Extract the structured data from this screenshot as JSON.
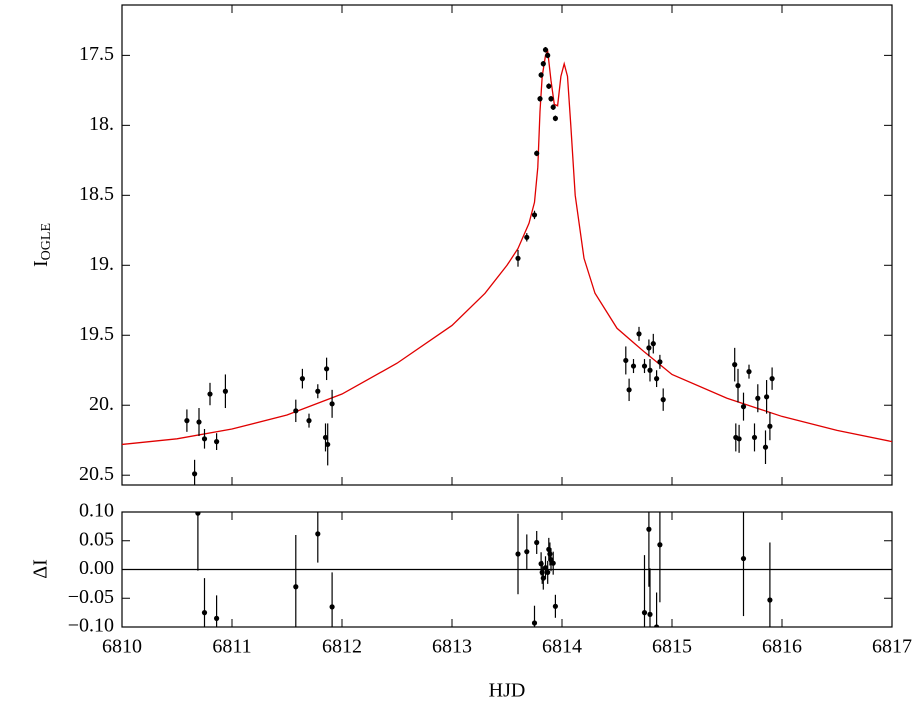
{
  "chart_data": [
    {
      "type": "errorbar",
      "ylabel": {
        "text": "I",
        "sub": "OGLE"
      },
      "xlim": [
        6810,
        6817
      ],
      "xticks": [
        6810,
        6811,
        6812,
        6813,
        6814,
        6815,
        6816,
        6817
      ],
      "xtick_labels": false,
      "ylim": [
        20.57,
        17.14
      ],
      "yticks": [
        17.5,
        {
          "value": 18,
          "label": "18."
        },
        18.5,
        {
          "value": 19,
          "label": "19."
        },
        19.5,
        {
          "value": 20,
          "label": "20."
        },
        20.5
      ],
      "points": {
        "color": "#000000",
        "x": [
          6810.59,
          6810.66,
          6810.7,
          6810.75,
          6810.8,
          6810.86,
          6810.94,
          6811.58,
          6811.64,
          6811.7,
          6811.78,
          6811.85,
          6811.86,
          6811.87,
          6811.91,
          6813.6,
          6813.68,
          6813.75,
          6813.77,
          6813.8,
          6813.81,
          6813.83,
          6813.85,
          6813.87,
          6813.88,
          6813.9,
          6813.92,
          6813.94,
          6814.58,
          6814.61,
          6814.65,
          6814.7,
          6814.75,
          6814.79,
          6814.8,
          6814.83,
          6814.86,
          6814.89,
          6814.92,
          6815.57,
          6815.58,
          6815.6,
          6815.61,
          6815.65,
          6815.7,
          6815.75,
          6815.78,
          6815.85,
          6815.86,
          6815.89,
          6815.91
        ],
        "values": [
          20.11,
          20.49,
          20.12,
          20.24,
          19.92,
          20.26,
          19.9,
          20.04,
          19.81,
          20.11,
          19.9,
          20.23,
          19.74,
          20.28,
          19.99,
          18.95,
          18.8,
          18.64,
          18.2,
          17.81,
          17.64,
          17.56,
          17.46,
          17.5,
          17.72,
          17.81,
          17.87,
          17.95,
          19.68,
          19.89,
          19.72,
          19.49,
          19.72,
          19.59,
          19.75,
          19.56,
          19.81,
          19.69,
          19.96,
          19.71,
          20.23,
          19.86,
          20.24,
          20.01,
          19.76,
          20.23,
          19.95,
          20.3,
          19.94,
          20.15,
          19.81
        ],
        "errors": [
          0.08,
          0.1,
          0.1,
          0.07,
          0.08,
          0.06,
          0.12,
          0.08,
          0.07,
          0.05,
          0.05,
          0.1,
          0.08,
          0.15,
          0.1,
          0.06,
          0.03,
          0.03,
          0.02,
          0.02,
          0.02,
          0.02,
          0.02,
          0.02,
          0.02,
          0.02,
          0.02,
          0.02,
          0.1,
          0.08,
          0.05,
          0.05,
          0.05,
          0.06,
          0.08,
          0.07,
          0.06,
          0.05,
          0.08,
          0.12,
          0.1,
          0.12,
          0.1,
          0.1,
          0.05,
          0.1,
          0.1,
          0.12,
          0.12,
          0.1,
          0.08
        ]
      },
      "model": {
        "color": "#e00000",
        "x": [
          6810,
          6810.5,
          6811,
          6811.5,
          6812,
          6812.5,
          6813,
          6813.3,
          6813.5,
          6813.6,
          6813.7,
          6813.75,
          6813.78,
          6813.8,
          6813.82,
          6813.85,
          6813.87,
          6813.9,
          6813.93,
          6813.96,
          6813.99,
          6814.02,
          6814.05,
          6814.08,
          6814.12,
          6814.2,
          6814.3,
          6814.5,
          6814.75,
          6815,
          6815.5,
          6816,
          6816.5,
          6817
        ],
        "values": [
          20.28,
          20.24,
          20.17,
          20.07,
          19.92,
          19.7,
          19.43,
          19.2,
          19.0,
          18.88,
          18.7,
          18.55,
          18.3,
          17.9,
          17.65,
          17.5,
          17.47,
          17.68,
          17.85,
          17.86,
          17.65,
          17.56,
          17.65,
          18.0,
          18.5,
          18.95,
          19.2,
          19.45,
          19.62,
          19.78,
          19.95,
          20.08,
          20.18,
          20.26
        ]
      }
    },
    {
      "type": "errorbar",
      "ylabel": {
        "text": "ΔI"
      },
      "xlabel": "HJD",
      "xlim": [
        6810,
        6817
      ],
      "xticks": [
        6810,
        6811,
        6812,
        6813,
        6814,
        6815,
        6816,
        6817
      ],
      "xtick_labels": true,
      "ylim": [
        -0.1,
        0.1
      ],
      "yticks": [
        {
          "value": -0.1,
          "label": "−0.10"
        },
        {
          "value": -0.05,
          "label": "−0.05"
        },
        {
          "value": 0,
          "label": "0.00"
        },
        {
          "value": 0.05,
          "label": "0.05"
        },
        {
          "value": 0.1,
          "label": "0.10"
        }
      ],
      "zero_line": true,
      "points": {
        "color": "#000000",
        "x": [
          6810.69,
          6810.75,
          6810.86,
          6811.58,
          6811.78,
          6811.91,
          6813.6,
          6813.68,
          6813.75,
          6813.77,
          6813.81,
          6813.82,
          6813.83,
          6813.85,
          6813.87,
          6813.88,
          6813.89,
          6813.9,
          6813.92,
          6813.94,
          6814.75,
          6814.79,
          6814.8,
          6814.86,
          6814.89,
          6815.65,
          6815.89
        ],
        "values": [
          0.098,
          -0.075,
          -0.085,
          -0.03,
          0.062,
          -0.065,
          0.027,
          0.031,
          -0.093,
          0.047,
          0.01,
          -0.005,
          -0.015,
          0.003,
          -0.005,
          0.035,
          0.027,
          0.017,
          0.011,
          -0.064,
          -0.075,
          0.07,
          -0.078,
          -0.1,
          0.043,
          0.019,
          -0.053
        ],
        "errors": [
          0.1,
          0.06,
          0.04,
          0.09,
          0.05,
          0.06,
          0.07,
          0.03,
          0.03,
          0.02,
          0.02,
          0.02,
          0.02,
          0.02,
          0.02,
          0.02,
          0.02,
          0.02,
          0.02,
          0.02,
          0.1,
          0.1,
          0.08,
          0.06,
          0.1,
          0.1,
          0.1
        ]
      }
    }
  ]
}
